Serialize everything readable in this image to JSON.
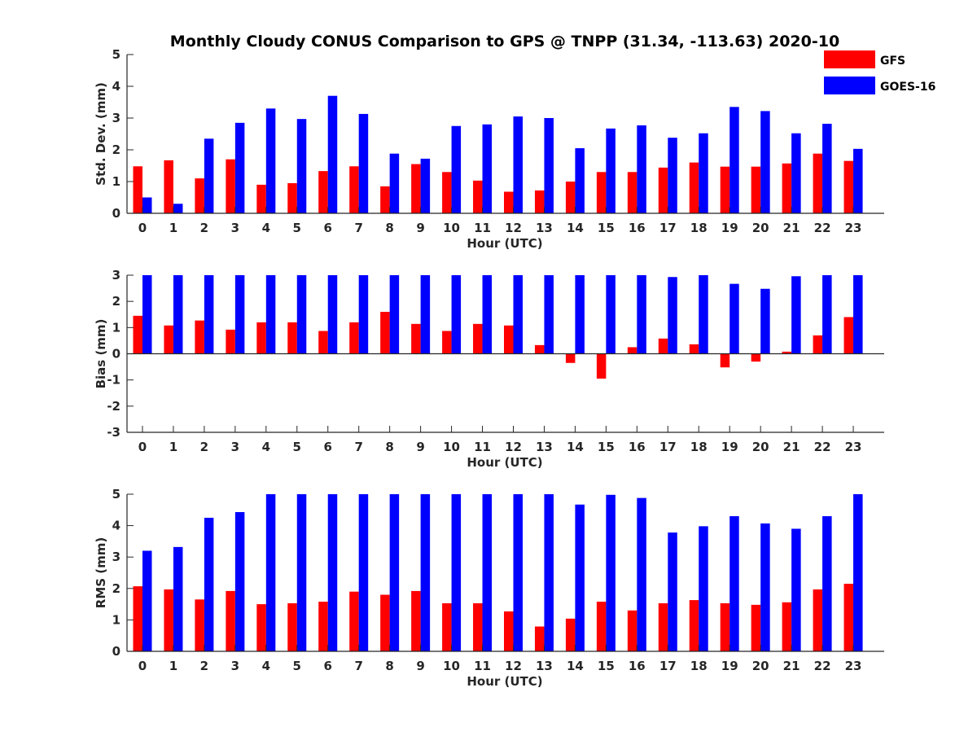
{
  "title": "Monthly Cloudy CONUS Comparison to GPS @ TNPP (31.34, -113.63) 2020-10",
  "legend": {
    "placement": "top-right",
    "entries": [
      {
        "name": "GFS",
        "color": "#ff0000"
      },
      {
        "name": "GOES-16",
        "color": "#0000ff"
      }
    ]
  },
  "chart_data": [
    {
      "type": "bar",
      "ylabel": "Std. Dev. (mm)",
      "xlabel": "Hour (UTC)",
      "ylim": [
        0,
        5
      ],
      "yticks": [
        0,
        1,
        2,
        3,
        4,
        5
      ],
      "categories": [
        0,
        1,
        2,
        3,
        4,
        5,
        6,
        7,
        8,
        9,
        10,
        11,
        12,
        13,
        14,
        15,
        16,
        17,
        18,
        19,
        20,
        21,
        22,
        23
      ],
      "series": [
        {
          "name": "GFS",
          "color": "#ff0000",
          "values": [
            1.48,
            1.67,
            1.1,
            1.7,
            0.9,
            0.95,
            1.33,
            1.48,
            0.85,
            1.55,
            1.3,
            1.03,
            0.68,
            0.72,
            1.0,
            1.3,
            1.3,
            1.44,
            1.6,
            1.47,
            1.47,
            1.57,
            1.88,
            1.65
          ]
        },
        {
          "name": "GOES-16",
          "color": "#0000ff",
          "values": [
            0.5,
            0.3,
            2.35,
            2.85,
            3.3,
            2.97,
            3.7,
            3.13,
            1.88,
            1.72,
            2.75,
            2.8,
            3.05,
            3.0,
            2.05,
            2.67,
            2.77,
            2.38,
            2.52,
            3.35,
            3.22,
            2.52,
            2.82,
            2.03
          ]
        }
      ]
    },
    {
      "type": "bar",
      "ylabel": "Bias (mm)",
      "xlabel": "Hour (UTC)",
      "ylim": [
        -3,
        3
      ],
      "yticks": [
        -3,
        -2,
        -1,
        0,
        1,
        2,
        3
      ],
      "categories": [
        0,
        1,
        2,
        3,
        4,
        5,
        6,
        7,
        8,
        9,
        10,
        11,
        12,
        13,
        14,
        15,
        16,
        17,
        18,
        19,
        20,
        21,
        22,
        23
      ],
      "series": [
        {
          "name": "GFS",
          "color": "#ff0000",
          "values": [
            1.45,
            1.08,
            1.27,
            0.92,
            1.2,
            1.2,
            0.87,
            1.2,
            1.6,
            1.14,
            0.87,
            1.14,
            1.08,
            0.33,
            -0.35,
            -0.95,
            0.25,
            0.58,
            0.36,
            -0.52,
            -0.3,
            0.08,
            0.7,
            1.4
          ]
        },
        {
          "name": "GOES-16",
          "color": "#0000ff",
          "values": [
            3.0,
            3.0,
            3.0,
            3.0,
            3.0,
            3.0,
            3.0,
            3.0,
            3.0,
            3.0,
            3.0,
            3.0,
            3.0,
            3.0,
            3.0,
            3.0,
            3.0,
            2.93,
            3.0,
            2.67,
            2.48,
            2.96,
            3.0,
            3.0
          ]
        }
      ]
    },
    {
      "type": "bar",
      "ylabel": "RMS (mm)",
      "xlabel": "Hour (UTC)",
      "ylim": [
        0,
        5
      ],
      "yticks": [
        0,
        1,
        2,
        3,
        4,
        5
      ],
      "categories": [
        0,
        1,
        2,
        3,
        4,
        5,
        6,
        7,
        8,
        9,
        10,
        11,
        12,
        13,
        14,
        15,
        16,
        17,
        18,
        19,
        20,
        21,
        22,
        23
      ],
      "series": [
        {
          "name": "GFS",
          "color": "#ff0000",
          "values": [
            2.07,
            1.97,
            1.65,
            1.92,
            1.5,
            1.53,
            1.58,
            1.9,
            1.8,
            1.92,
            1.53,
            1.53,
            1.27,
            0.79,
            1.04,
            1.58,
            1.3,
            1.53,
            1.63,
            1.53,
            1.48,
            1.56,
            1.97,
            2.15
          ]
        },
        {
          "name": "GOES-16",
          "color": "#0000ff",
          "values": [
            3.2,
            3.32,
            4.25,
            4.43,
            5.0,
            5.0,
            5.0,
            5.0,
            5.0,
            5.0,
            5.0,
            5.0,
            5.0,
            5.0,
            4.67,
            4.98,
            4.88,
            3.78,
            3.98,
            4.3,
            4.07,
            3.9,
            4.3,
            5.0
          ]
        }
      ]
    }
  ]
}
